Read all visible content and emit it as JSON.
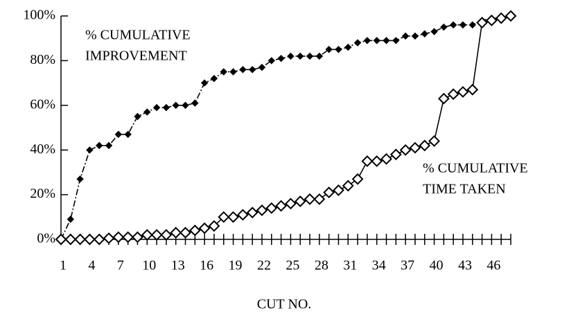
{
  "chart_data": {
    "type": "line",
    "xlabel": "CUT NO.",
    "categories": [
      1,
      null,
      null,
      4,
      null,
      null,
      7,
      null,
      null,
      10,
      null,
      null,
      13,
      null,
      null,
      16,
      null,
      null,
      19,
      null,
      null,
      22,
      null,
      null,
      25,
      null,
      null,
      28,
      null,
      null,
      31,
      null,
      null,
      34,
      null,
      null,
      37,
      null,
      null,
      40,
      null,
      null,
      43,
      null,
      null,
      46,
      null,
      null
    ],
    "series": [
      {
        "name": "% CUMULATIVE IMPROVEMENT",
        "color": "#000000",
        "line_style": "dashdot",
        "marker": "filled-diamond",
        "values": [
          0,
          9,
          27,
          40,
          42,
          42,
          47,
          47,
          55,
          57,
          59,
          59,
          60,
          60,
          61,
          70,
          72,
          75,
          75,
          76,
          76,
          77,
          80,
          81,
          82,
          82,
          82,
          82,
          85,
          85,
          86,
          88,
          89,
          89,
          89,
          89,
          91,
          91,
          92,
          93,
          95,
          96,
          96,
          96,
          98,
          99,
          99,
          100
        ]
      },
      {
        "name": "% CUMULATIVE TIME TAKEN",
        "color": "#000000",
        "line_style": "solid",
        "marker": "open-diamond",
        "values": [
          0,
          0,
          0,
          0,
          0,
          0.5,
          1,
          1,
          1,
          2,
          2,
          2,
          3,
          3,
          4,
          5,
          6,
          10,
          10,
          11,
          12,
          13,
          14,
          15,
          16,
          17,
          18,
          18,
          21,
          22,
          24,
          27,
          35,
          35,
          36,
          38,
          40,
          41,
          42,
          44,
          63,
          65,
          66,
          67,
          97,
          98,
          99,
          100
        ]
      }
    ],
    "annotations": [
      [
        "% CUMULATIVE",
        "IMPROVEMENT"
      ],
      [
        "% CUMULATIVE",
        "TIME TAKEN"
      ]
    ],
    "ylim": [
      0,
      100
    ],
    "yticks": [
      {
        "value": 0,
        "label": "0%"
      },
      {
        "value": 20,
        "label": "20%"
      },
      {
        "value": 40,
        "label": "40%"
      },
      {
        "value": 60,
        "label": "60%"
      },
      {
        "value": 80,
        "label": "80%"
      },
      {
        "value": 100,
        "label": "100%"
      }
    ],
    "grid": false
  }
}
